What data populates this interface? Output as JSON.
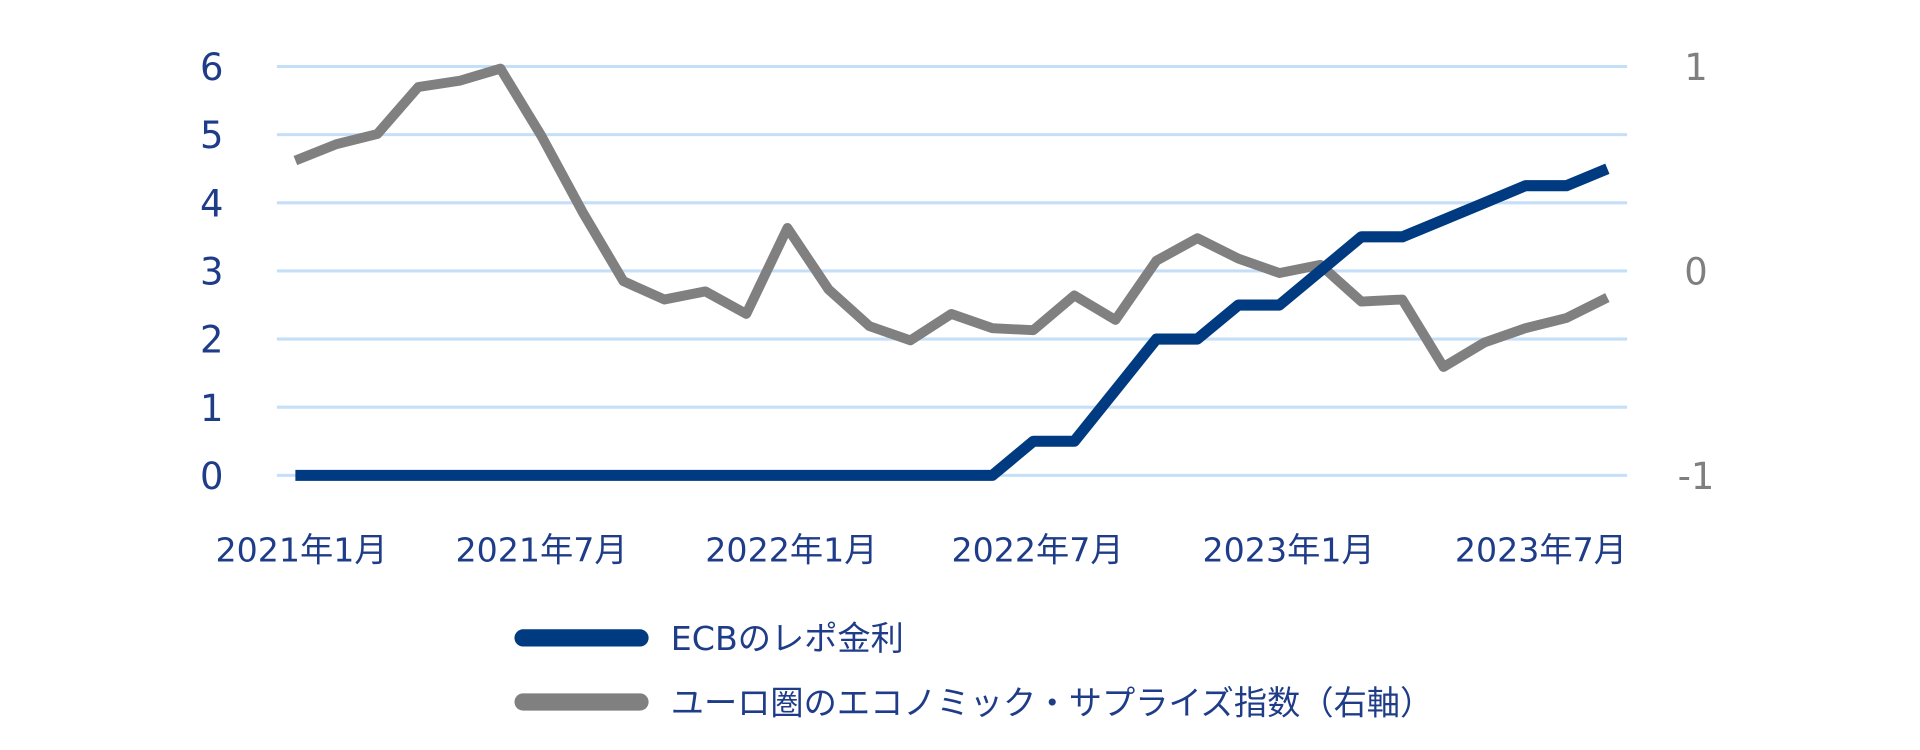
{
  "chart_data": {
    "type": "line",
    "title": "",
    "x_tick_labels": [
      "2021年1月",
      "2021年7月",
      "2022年1月",
      "2022年7月",
      "2023年1月",
      "2023年7月"
    ],
    "x": [
      "2021-01",
      "2021-02",
      "2021-03",
      "2021-04",
      "2021-05",
      "2021-06",
      "2021-07",
      "2021-08",
      "2021-09",
      "2021-10",
      "2021-11",
      "2021-12",
      "2022-01",
      "2022-02",
      "2022-03",
      "2022-04",
      "2022-05",
      "2022-06",
      "2022-07",
      "2022-08",
      "2022-09",
      "2022-10",
      "2022-11",
      "2022-12",
      "2023-01",
      "2023-02",
      "2023-03",
      "2023-04",
      "2023-05",
      "2023-06",
      "2023-07",
      "2023-08",
      "2023-09"
    ],
    "y_left": {
      "range": [
        0,
        6
      ],
      "ticks": [
        "0",
        "1",
        "2",
        "3",
        "4",
        "5",
        "6"
      ]
    },
    "y_right": {
      "range": [
        -1,
        1
      ],
      "ticks": [
        "-1",
        "0",
        "1"
      ]
    },
    "grid": true,
    "legend_position": "bottom",
    "series": [
      {
        "name": "ECBのレポ金利",
        "axis": "left",
        "color": "#003a80",
        "values": [
          0,
          0,
          0,
          0,
          0,
          0,
          0,
          0,
          0,
          0,
          0,
          0,
          0,
          0,
          0,
          0,
          0,
          0,
          0.5,
          0.5,
          1.25,
          2.0,
          2.0,
          2.5,
          2.5,
          3.0,
          3.5,
          3.5,
          3.75,
          4.0,
          4.25,
          4.25,
          4.5
        ]
      },
      {
        "name": "ユーロ圏のエコノミック・サプライズ指数（右軸）",
        "axis": "right",
        "color": "#808080",
        "values": [
          0.54,
          0.62,
          0.67,
          0.9,
          0.93,
          0.99,
          0.66,
          0.29,
          -0.05,
          -0.14,
          -0.1,
          -0.21,
          0.21,
          -0.09,
          -0.27,
          -0.34,
          -0.21,
          -0.28,
          -0.29,
          -0.12,
          -0.24,
          0.05,
          0.16,
          0.06,
          -0.01,
          0.03,
          -0.15,
          -0.14,
          -0.47,
          -0.35,
          -0.28,
          -0.23,
          -0.13
        ]
      }
    ]
  }
}
